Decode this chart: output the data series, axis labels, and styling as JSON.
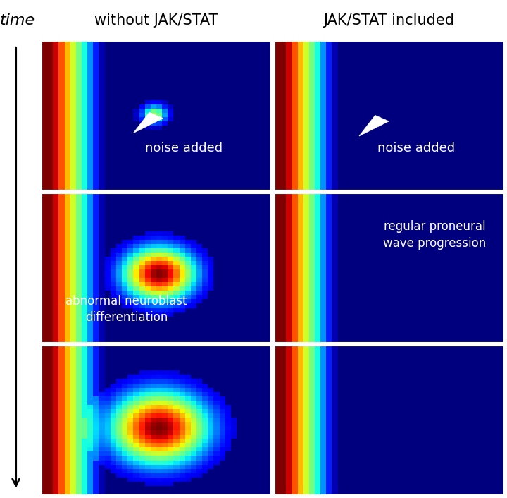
{
  "fig_width": 7.2,
  "fig_height": 7.06,
  "dpi": 100,
  "title_time": "time",
  "title_left": "without JAK/STAT",
  "title_right": "JAK/STAT included",
  "label_noise": "noise added",
  "label_abnormal": "abnormal neuroblast\ndifferentiation",
  "label_regular": "regular proneural\nwave progression",
  "bg_color": "#ffffff",
  "text_color": "#ffffff",
  "header_color": "#000000"
}
